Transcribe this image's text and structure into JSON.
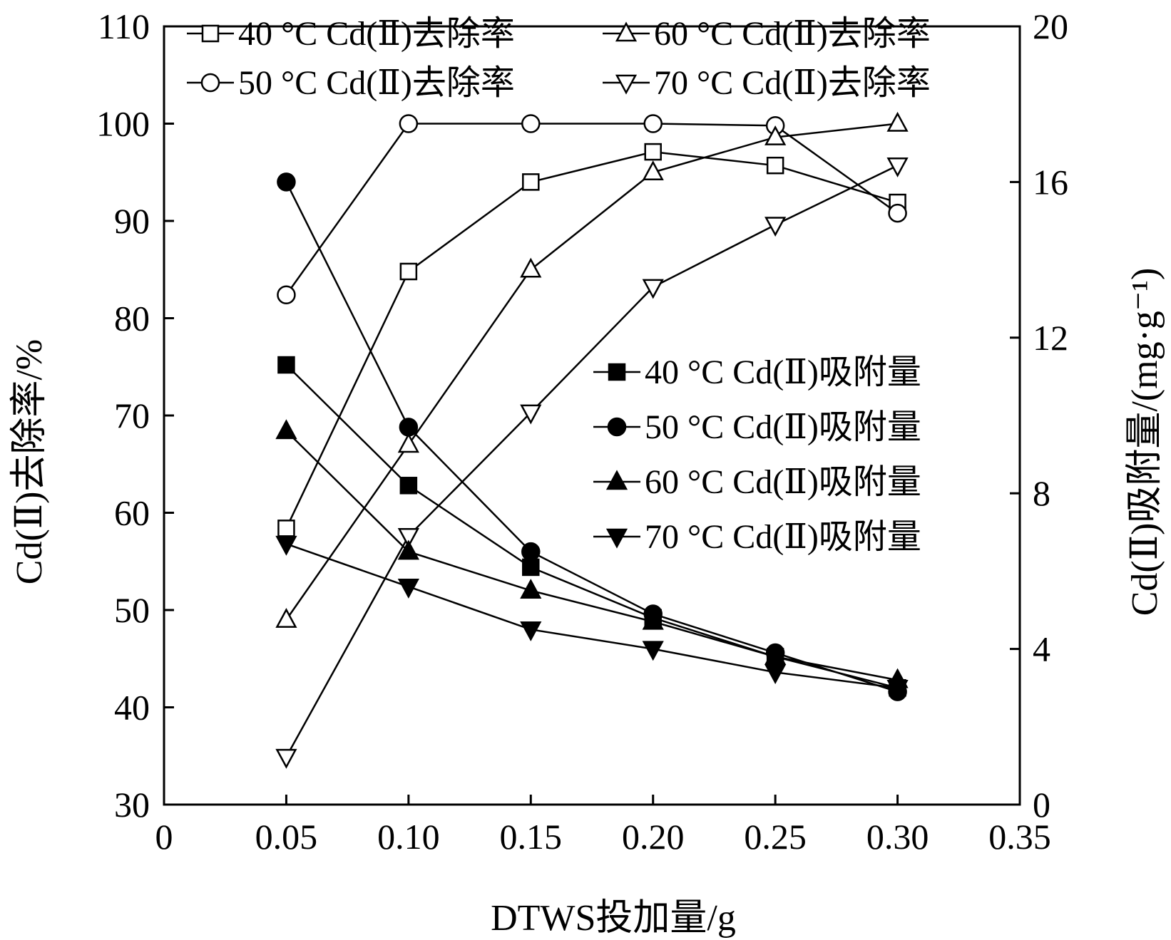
{
  "chart_data": {
    "type": "line",
    "xlabel": "DTWS投加量/g",
    "ylabel": "Cd(Ⅱ)去除率/%",
    "y2label": "Cd(Ⅱ)吸附量/(mg·g⁻¹)",
    "xlim": [
      0,
      0.35
    ],
    "ylim": [
      30,
      110
    ],
    "y2lim": [
      0,
      20
    ],
    "x_ticks": [
      "0",
      "0.05",
      "0.10",
      "0.15",
      "0.20",
      "0.25",
      "0.30",
      "0.35"
    ],
    "y_ticks": [
      "30",
      "40",
      "50",
      "60",
      "70",
      "80",
      "90",
      "100",
      "110"
    ],
    "y2_ticks": [
      "0",
      "4",
      "8",
      "12",
      "16",
      "20"
    ],
    "x": [
      0.05,
      0.1,
      0.15,
      0.2,
      0.25,
      0.3
    ],
    "series": [
      {
        "name": "40 °C Cd(Ⅱ)去除率",
        "axis": "left",
        "marker": "square-open",
        "values": [
          58.4,
          84.8,
          94.0,
          97.1,
          95.7,
          91.9
        ]
      },
      {
        "name": "50 °C Cd(Ⅱ)去除率",
        "axis": "left",
        "marker": "circle-open",
        "values": [
          82.4,
          100.0,
          100.0,
          100.0,
          99.8,
          90.8
        ]
      },
      {
        "name": "60 °C Cd(Ⅱ)去除率",
        "axis": "left",
        "marker": "triangle-up-open",
        "values": [
          49.0,
          67.0,
          85.0,
          95.0,
          98.6,
          100.0
        ]
      },
      {
        "name": "70 °C Cd(Ⅱ)去除率",
        "axis": "left",
        "marker": "triangle-down-open",
        "values": [
          34.9,
          57.6,
          70.3,
          83.2,
          89.6,
          95.7
        ]
      },
      {
        "name": "40 °C Cd(Ⅱ)吸附量",
        "axis": "right",
        "marker": "square-filled",
        "values": [
          11.3,
          8.2,
          6.1,
          4.8,
          3.8,
          3.0
        ]
      },
      {
        "name": "50 °C Cd(Ⅱ)吸附量",
        "axis": "right",
        "marker": "circle-filled",
        "values": [
          16.0,
          9.7,
          6.5,
          4.9,
          3.9,
          2.9
        ]
      },
      {
        "name": "60 °C Cd(Ⅱ)吸附量",
        "axis": "right",
        "marker": "triangle-up-filled",
        "values": [
          9.6,
          6.5,
          5.5,
          4.7,
          3.8,
          3.2
        ]
      },
      {
        "name": "70 °C Cd(Ⅱ)吸附量",
        "axis": "right",
        "marker": "triangle-down-filled",
        "values": [
          6.7,
          5.6,
          4.5,
          4.0,
          3.4,
          3.0
        ]
      }
    ],
    "legend_top": {
      "placement": "top"
    },
    "legend_right": {
      "placement": "center-right"
    },
    "grid": false
  }
}
